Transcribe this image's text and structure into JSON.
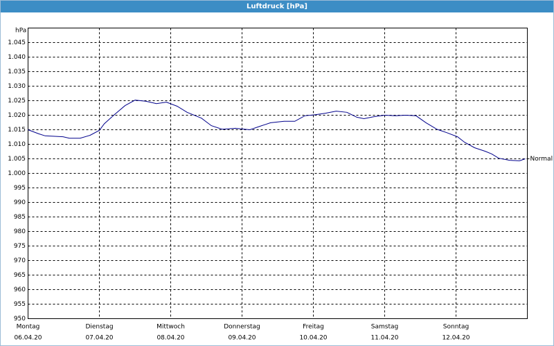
{
  "chart_data": {
    "type": "line",
    "title": "Luftdruck [hPa]",
    "y_label": "hPa",
    "xlim": [
      0,
      7
    ],
    "xticks": [
      {
        "value": 0,
        "label": "Montag",
        "date": "06.04.20"
      },
      {
        "value": 1,
        "label": "Dienstag",
        "date": "07.04.20"
      },
      {
        "value": 2,
        "label": "Mittwoch",
        "date": "08.04.20"
      },
      {
        "value": 3,
        "label": "Donnerstag",
        "date": "09.04.20"
      },
      {
        "value": 4,
        "label": "Freitag",
        "date": "10.04.20"
      },
      {
        "value": 5,
        "label": "Samstag",
        "date": "11.04.20"
      },
      {
        "value": 6,
        "label": "Sonntag",
        "date": "12.04.20"
      }
    ],
    "ylim": [
      950,
      1050
    ],
    "yticks": [
      950,
      955,
      960,
      965,
      970,
      975,
      980,
      985,
      990,
      995,
      {
        "value": 1000,
        "label": "1.000"
      },
      {
        "value": 1005,
        "label": "1.005"
      },
      {
        "value": 1010,
        "label": "1.010"
      },
      {
        "value": 1015,
        "label": "1.015"
      },
      {
        "value": 1020,
        "label": "1.020"
      },
      {
        "value": 1025,
        "label": "1.025"
      },
      {
        "value": 1030,
        "label": "1.030"
      },
      {
        "value": 1035,
        "label": "1.035"
      },
      {
        "value": 1040,
        "label": "1.040"
      },
      {
        "value": 1045,
        "label": "1.045"
      }
    ],
    "grid": true,
    "series": [
      {
        "name": "Normal",
        "color": "#00008b",
        "x": [
          0,
          0.15,
          0.24,
          0.49,
          0.58,
          0.73,
          0.87,
          1.0,
          1.07,
          1.21,
          1.36,
          1.5,
          1.65,
          1.8,
          1.94,
          2.09,
          2.23,
          2.43,
          2.57,
          2.72,
          2.91,
          3.11,
          3.25,
          3.4,
          3.59,
          3.74,
          3.88,
          4.03,
          4.17,
          4.32,
          4.47,
          4.61,
          4.71,
          4.85,
          5.0,
          5.15,
          5.29,
          5.44,
          5.58,
          5.73,
          5.87,
          6.02,
          6.12,
          6.26,
          6.41,
          6.5,
          6.6,
          6.75,
          6.89,
          6.97
        ],
        "values": [
          1015.0,
          1013.6,
          1012.9,
          1012.6,
          1012.1,
          1012.1,
          1013.1,
          1014.8,
          1017.1,
          1020.2,
          1023.3,
          1025.2,
          1024.8,
          1024.0,
          1024.5,
          1023.1,
          1021.0,
          1019.0,
          1016.4,
          1015.2,
          1015.5,
          1015.0,
          1016.2,
          1017.4,
          1017.9,
          1017.9,
          1019.8,
          1020.2,
          1020.7,
          1021.4,
          1021.0,
          1019.3,
          1018.8,
          1019.5,
          1020.0,
          1019.8,
          1020.0,
          1019.8,
          1017.4,
          1015.2,
          1014.0,
          1012.6,
          1010.7,
          1008.8,
          1007.6,
          1006.7,
          1005.2,
          1004.5,
          1004.3,
          1005.0
        ]
      }
    ]
  }
}
